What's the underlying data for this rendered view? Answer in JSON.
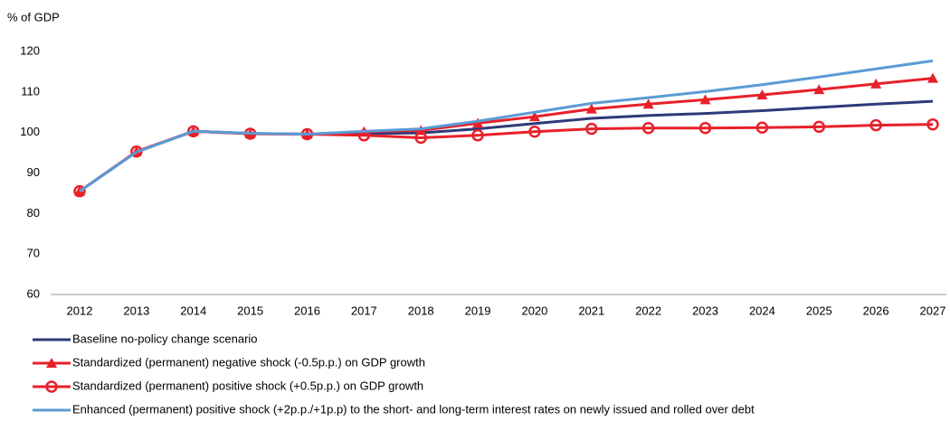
{
  "chart_data": {
    "type": "line",
    "y_label": "% of GDP",
    "categories": [
      "2012",
      "2013",
      "2014",
      "2015",
      "2016",
      "2017",
      "2018",
      "2019",
      "2020",
      "2021",
      "2022",
      "2023",
      "2024",
      "2025",
      "2026",
      "2027"
    ],
    "series": [
      {
        "name": "Baseline no-policy change scenario",
        "color": "#2e3a78",
        "marker": null,
        "values": [
          85.5,
          95.2,
          100.3,
          99.8,
          99.6,
          99.7,
          99.9,
          100.9,
          102.2,
          103.5,
          104.2,
          104.7,
          105.4,
          106.2,
          107.0,
          107.7
        ]
      },
      {
        "name": "Standardized (permanent) negative shock (-0.5p.p.) on GDP growth",
        "color": "#e8202a",
        "marker": "triangle",
        "values": [
          85.5,
          95.3,
          100.3,
          99.7,
          99.6,
          100.2,
          100.5,
          102.3,
          103.9,
          105.8,
          107.0,
          108.1,
          109.3,
          110.6,
          112.0,
          113.4
        ]
      },
      {
        "name": "Standardized (permanent) positive shock (+0.5p.p.) on GDP growth",
        "color": "#e8202a",
        "marker": "circle",
        "values": [
          85.5,
          95.3,
          100.3,
          99.7,
          99.6,
          99.3,
          98.7,
          99.3,
          100.2,
          100.9,
          101.1,
          101.1,
          101.2,
          101.4,
          101.8,
          102.0
        ]
      },
      {
        "name": "Enhanced (permanent) positive shock (+2p.p./+1p.p) to the short- and long-term interest rates on newly issued and rolled over debt",
        "color": "#5b9bd5",
        "marker": null,
        "values": [
          85.5,
          95.2,
          100.3,
          99.8,
          99.6,
          100.3,
          100.9,
          102.8,
          105.0,
          107.2,
          108.6,
          110.1,
          111.8,
          113.7,
          115.7,
          117.7
        ]
      }
    ],
    "ylim": [
      60,
      120
    ],
    "yticks": [
      60,
      70,
      80,
      90,
      100,
      110,
      120
    ],
    "grid": false,
    "legend": "bottom"
  }
}
